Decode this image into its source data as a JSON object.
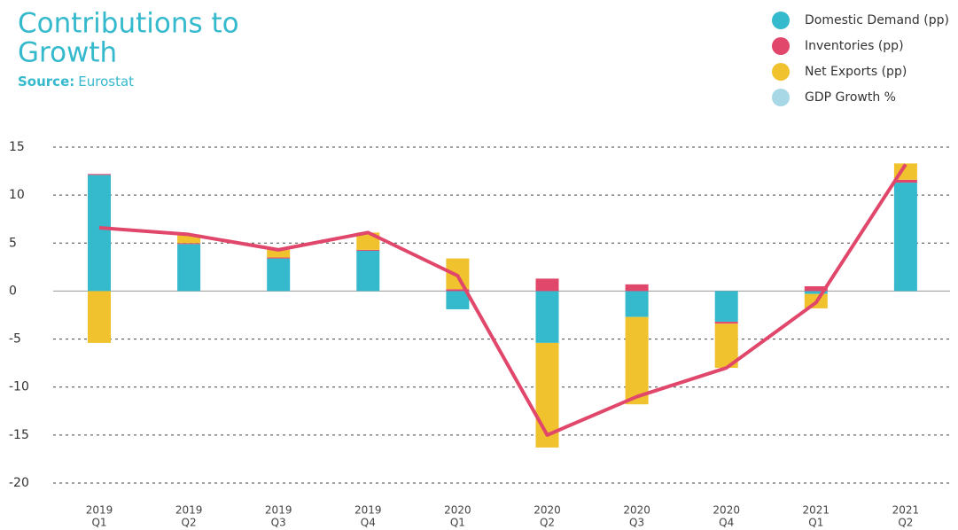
{
  "chart_data": {
    "type": "bar",
    "title_lines": [
      "Contributions to",
      "Growth"
    ],
    "source_label": "Source:",
    "source": "Eurostat",
    "categories": [
      [
        "2019",
        "Q1"
      ],
      [
        "2019",
        "Q2"
      ],
      [
        "2019",
        "Q3"
      ],
      [
        "2019",
        "Q4"
      ],
      [
        "2020",
        "Q1"
      ],
      [
        "2020",
        "Q2"
      ],
      [
        "2020",
        "Q3"
      ],
      [
        "2020",
        "Q4"
      ],
      [
        "2021",
        "Q1"
      ],
      [
        "2021",
        "Q2"
      ]
    ],
    "series": [
      {
        "name": "Domestic Demand (pp)",
        "color": "#35b9cc",
        "type": "bar",
        "values": [
          12.1,
          4.9,
          3.4,
          4.2,
          -1.9,
          -5.4,
          -2.7,
          -3.2,
          -0.3,
          11.3
        ]
      },
      {
        "name": "Inventories (pp)",
        "color": "#e0476a",
        "type": "bar",
        "values": [
          0.1,
          0.1,
          0.1,
          0.1,
          0.2,
          1.3,
          0.7,
          -0.2,
          0.5,
          0.3
        ]
      },
      {
        "name": "Net Exports (pp)",
        "color": "#f0c22e",
        "type": "bar",
        "values": [
          -5.4,
          0.9,
          0.8,
          1.8,
          3.2,
          -10.9,
          -9.1,
          -4.6,
          -1.5,
          1.7
        ]
      },
      {
        "name": "GDP Growth %",
        "color": "#e0476a",
        "legend_color": "#a8d8e6",
        "type": "line",
        "values": [
          6.6,
          5.9,
          4.3,
          6.1,
          1.6,
          -15.0,
          -11.0,
          -8.0,
          -1.2,
          13.2
        ]
      }
    ],
    "ylim": [
      -20,
      15
    ],
    "yticks": [
      -20,
      -15,
      -10,
      -5,
      0,
      5,
      10,
      15
    ],
    "grid": true,
    "legend": "top-right"
  }
}
